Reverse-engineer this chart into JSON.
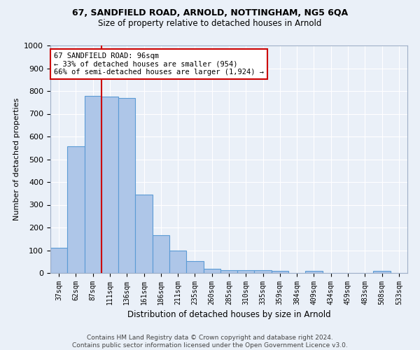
{
  "title1": "67, SANDFIELD ROAD, ARNOLD, NOTTINGHAM, NG5 6QA",
  "title2": "Size of property relative to detached houses in Arnold",
  "xlabel": "Distribution of detached houses by size in Arnold",
  "ylabel": "Number of detached properties",
  "categories": [
    "37sqm",
    "62sqm",
    "87sqm",
    "111sqm",
    "136sqm",
    "161sqm",
    "186sqm",
    "211sqm",
    "235sqm",
    "260sqm",
    "285sqm",
    "310sqm",
    "335sqm",
    "359sqm",
    "384sqm",
    "409sqm",
    "434sqm",
    "459sqm",
    "483sqm",
    "508sqm",
    "533sqm"
  ],
  "values": [
    112,
    558,
    778,
    775,
    768,
    345,
    165,
    98,
    53,
    20,
    13,
    13,
    13,
    10,
    0,
    10,
    0,
    0,
    0,
    10,
    0
  ],
  "bar_color": "#aec6e8",
  "bar_edge_color": "#5b9bd5",
  "bg_color": "#eaf0f8",
  "grid_color": "#ffffff",
  "vline_color": "#cc0000",
  "annotation_text": "67 SANDFIELD ROAD: 96sqm\n← 33% of detached houses are smaller (954)\n66% of semi-detached houses are larger (1,924) →",
  "annotation_box_color": "#ffffff",
  "annotation_box_edge_color": "#cc0000",
  "footer1": "Contains HM Land Registry data © Crown copyright and database right 2024.",
  "footer2": "Contains public sector information licensed under the Open Government Licence v3.0.",
  "ylim": [
    0,
    1000
  ]
}
